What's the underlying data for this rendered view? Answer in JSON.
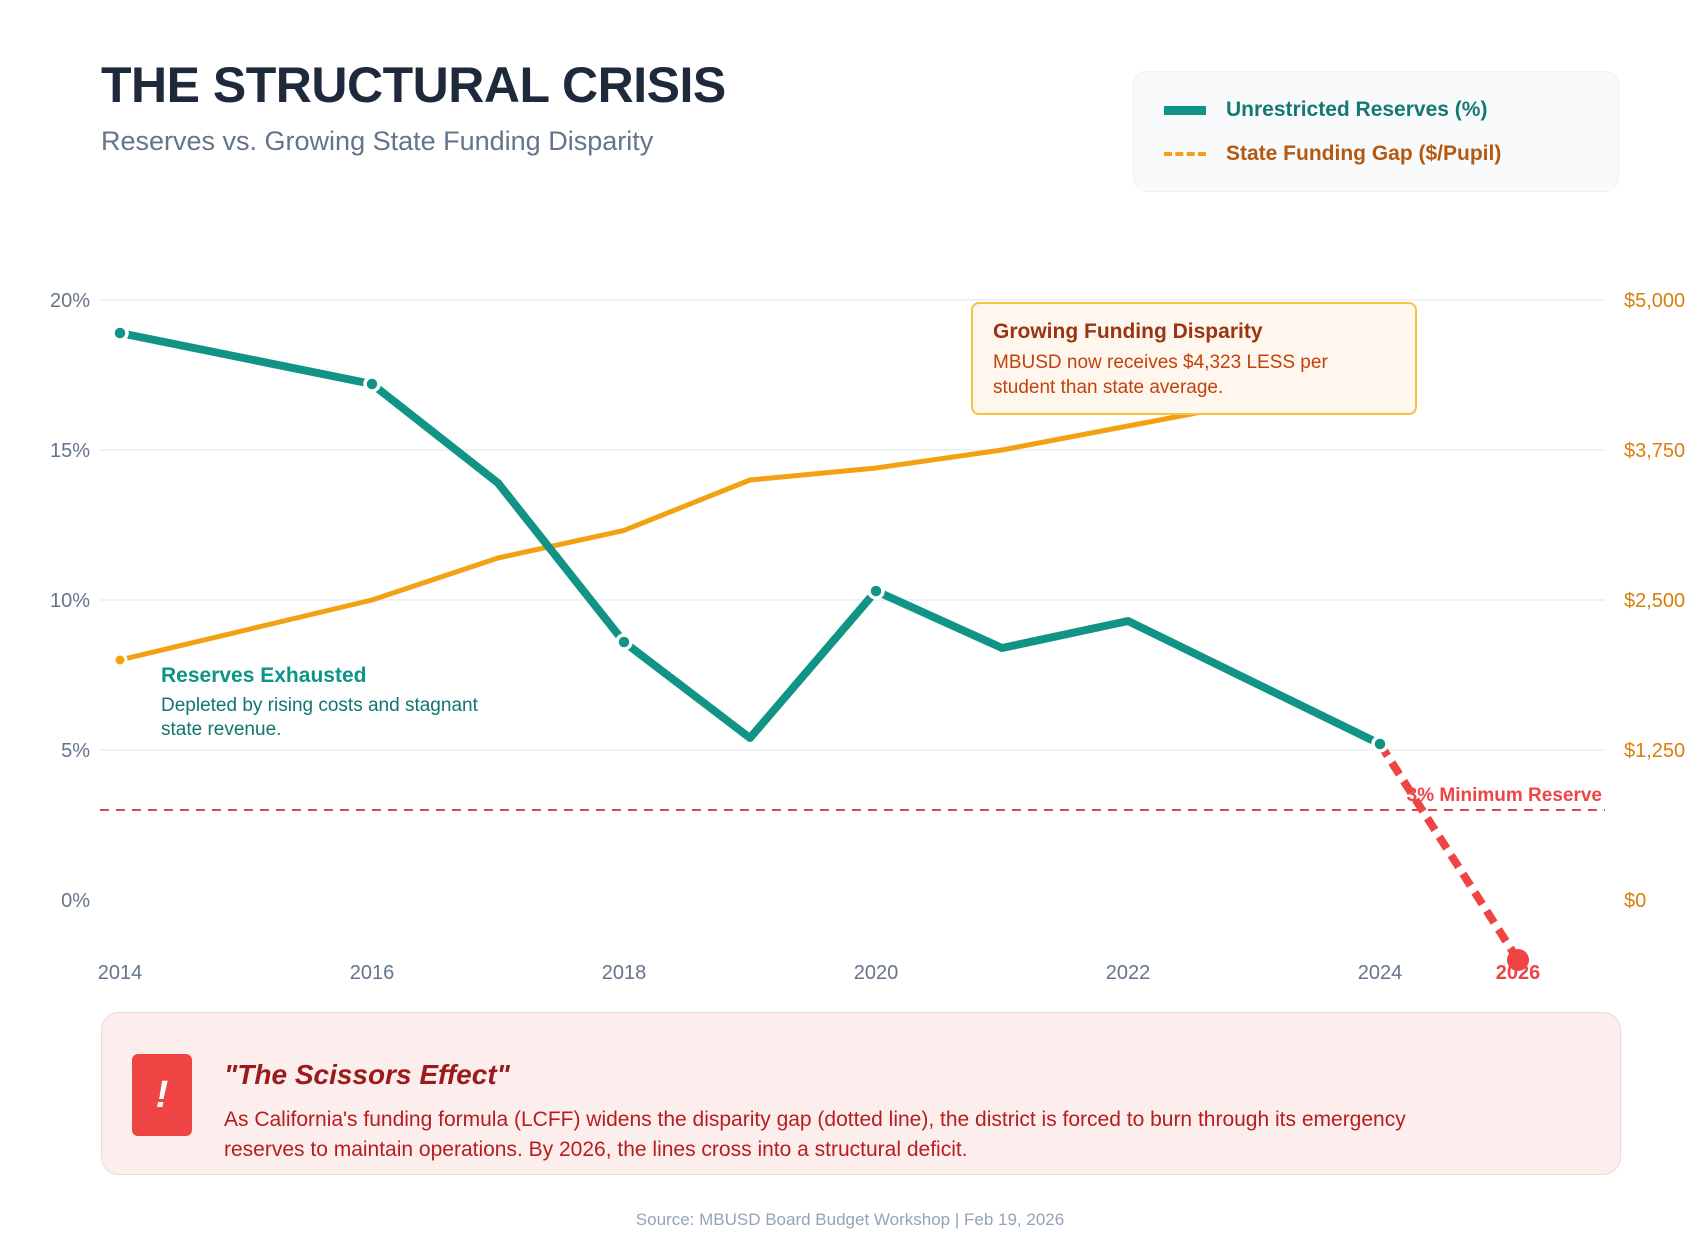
{
  "header": {
    "title": "THE STRUCTURAL CRISIS",
    "subtitle": "Reserves vs. Growing State Funding Disparity"
  },
  "legend": {
    "items": [
      {
        "label": "Unrestricted Reserves (%)",
        "style": "solid",
        "color": "#119486"
      },
      {
        "label": "State Funding Gap ($/Pupil)",
        "style": "dashed",
        "color": "#f2a113"
      }
    ]
  },
  "annotations": {
    "disparity": {
      "title": "Growing Funding Disparity",
      "body": "MBUSD now receives $4,323 LESS per student than state average."
    },
    "exhausted": {
      "title": "Reserves Exhausted",
      "body": "Depleted by rising costs and stagnant state revenue."
    },
    "minimum_reserve_label": "3% Minimum Reserve"
  },
  "callout": {
    "icon": "!",
    "title": "\"The Scissors Effect\"",
    "body": "As California's funding formula (LCFF) widens the disparity gap (dotted line), the district is forced to burn through its emergency reserves to maintain operations. By 2026, the lines cross into a structural deficit."
  },
  "source": "Source: MBUSD Board Budget Workshop | Feb 19, 2026",
  "colors": {
    "reserves": "#119486",
    "funding_gap": "#f2a113",
    "projection": "#ef4444",
    "threshold": "#dc4a4a",
    "grid": "#eef1f5",
    "left_axis_text": "#64748b",
    "right_axis_text": "#d97f0a"
  },
  "chart_data": {
    "type": "line",
    "title": "THE STRUCTURAL CRISIS",
    "subtitle": "Reserves vs. Growing State Funding Disparity",
    "x": [
      2014,
      2015,
      2016,
      2017,
      2018,
      2019,
      2020,
      2021,
      2022,
      2023,
      2024
    ],
    "x_tick_labels": [
      "2014",
      "2016",
      "2018",
      "2020",
      "2022",
      "2024",
      "2026"
    ],
    "grid": true,
    "legend_position": "top-right",
    "y_left": {
      "label": "Unrestricted Reserves (%)",
      "range": [
        0,
        20
      ],
      "ticks": [
        "0%",
        "5%",
        "10%",
        "15%",
        "20%"
      ],
      "tick_values": [
        0,
        5,
        10,
        15,
        20
      ]
    },
    "y_right": {
      "label": "State Funding Gap ($/Pupil)",
      "range": [
        0,
        5000
      ],
      "ticks": [
        "$0",
        "$1,250",
        "$2,500",
        "$3,750",
        "$5,000"
      ],
      "tick_values": [
        0,
        1250,
        2500,
        3750,
        5000
      ]
    },
    "series": [
      {
        "name": "Unrestricted Reserves (%)",
        "axis": "left",
        "values": [
          18.9,
          18.05,
          17.2,
          13.9,
          8.6,
          5.4,
          10.3,
          8.4,
          9.3,
          7.25,
          5.2
        ],
        "markers_at": [
          2014,
          2016,
          2018,
          2020,
          2024
        ]
      },
      {
        "name": "State Funding Gap ($/Pupil)",
        "axis": "right",
        "values": [
          2000,
          2250,
          2500,
          2850,
          3080,
          3500,
          3600,
          3750,
          3950,
          4150,
          4323
        ],
        "markers_at": [
          2014
        ]
      },
      {
        "name": "Projected Reserves (%)",
        "axis": "left",
        "x": [
          2024,
          2026
        ],
        "values": [
          5.2,
          -2.0
        ]
      }
    ],
    "reference_lines": [
      {
        "axis": "left",
        "value": 3,
        "label": "3% Minimum Reserve"
      }
    ]
  }
}
